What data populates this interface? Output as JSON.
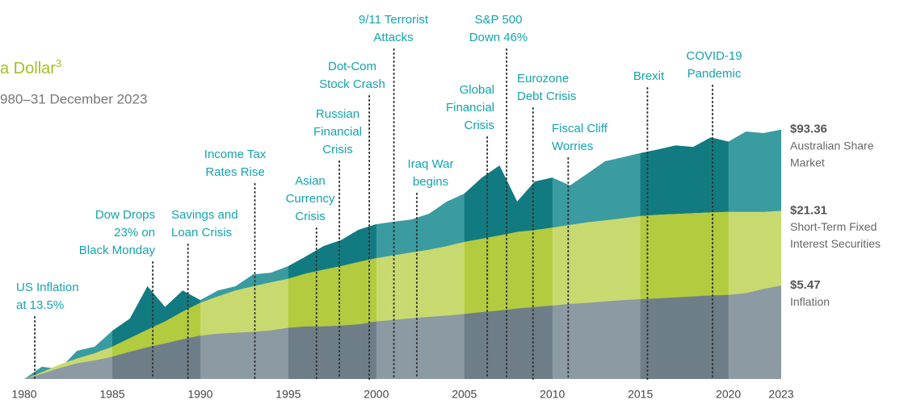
{
  "chart_data": {
    "type": "area",
    "title": "a Dollar",
    "title_superscript": "3",
    "subtitle": "980–31 December 2023",
    "log_scale": true,
    "xlim": [
      1980,
      2023
    ],
    "ylim": [
      1,
      100
    ],
    "xticks": [
      1980,
      1985,
      1990,
      1995,
      2000,
      2005,
      2010,
      2015,
      2020,
      2023
    ],
    "x": [
      1980,
      1981,
      1982,
      1983,
      1984,
      1985,
      1986,
      1987,
      1988,
      1989,
      1990,
      1991,
      1992,
      1993,
      1994,
      1995,
      1996,
      1997,
      1998,
      1999,
      2000,
      2001,
      2002,
      2003,
      2004,
      2005,
      2006,
      2007,
      2008,
      2009,
      2010,
      2011,
      2012,
      2013,
      2014,
      2015,
      2016,
      2017,
      2018,
      2019,
      2020,
      2021,
      2022,
      2023
    ],
    "series": [
      {
        "name_lines": [
          "Australian Share",
          "Market"
        ],
        "color": "#3a9ba1",
        "band_color": "#127b81",
        "value_label": "$93.36",
        "values": [
          1,
          1.25,
          1.2,
          1.67,
          1.8,
          2.4,
          3.0,
          5.4,
          3.7,
          5.0,
          4.2,
          5.0,
          5.4,
          6.7,
          6.9,
          7.8,
          9.3,
          11.2,
          12.5,
          15.1,
          16.7,
          17.5,
          18.2,
          20.2,
          25.2,
          29.1,
          39,
          48.6,
          25.2,
          36.3,
          39,
          33.8,
          42,
          52.5,
          56.4,
          60.8,
          65,
          70,
          68,
          81,
          75,
          90,
          87.6,
          93.36
        ]
      },
      {
        "name_lines": [
          "Short-Term Fixed",
          "Interest Securities"
        ],
        "color": "#c8da6f",
        "band_color": "#b3cb3e",
        "value_label": "$21.31",
        "values": [
          1,
          1.13,
          1.3,
          1.45,
          1.6,
          1.8,
          2.1,
          2.45,
          2.85,
          3.4,
          4.0,
          4.5,
          5.0,
          5.4,
          5.8,
          6.2,
          6.8,
          7.3,
          7.8,
          8.4,
          9.0,
          9.5,
          10.0,
          10.5,
          11.2,
          12.1,
          12.8,
          13.6,
          14.5,
          15.0,
          15.7,
          16.5,
          17.3,
          17.9,
          18.6,
          19.4,
          19.8,
          20.1,
          20.4,
          20.7,
          20.9,
          20.9,
          20.9,
          21.31
        ]
      },
      {
        "name_lines": [
          "Inflation"
        ],
        "color": "#8c9aa3",
        "band_color": "#6e7e88",
        "value_label": "$5.47",
        "values": [
          1,
          1.1,
          1.22,
          1.33,
          1.4,
          1.5,
          1.64,
          1.78,
          1.91,
          2.06,
          2.2,
          2.28,
          2.32,
          2.36,
          2.42,
          2.54,
          2.6,
          2.6,
          2.64,
          2.7,
          2.85,
          2.93,
          3.02,
          3.1,
          3.17,
          3.26,
          3.37,
          3.47,
          3.6,
          3.7,
          3.8,
          3.92,
          4.0,
          4.1,
          4.2,
          4.27,
          4.33,
          4.41,
          4.49,
          4.57,
          4.61,
          4.77,
          5.15,
          5.47
        ]
      }
    ],
    "annotations": [
      {
        "lines": [
          "US Inflation",
          "at 13.5%"
        ],
        "x": 1980.6
      },
      {
        "lines": [
          "Dow Drops",
          "23% on",
          "Black Monday"
        ],
        "x": 1987.3
      },
      {
        "lines": [
          "Savings and",
          "Loan Crisis"
        ],
        "x": 1989.3
      },
      {
        "lines": [
          "Income Tax",
          "Rates Rise"
        ],
        "x": 1993.1
      },
      {
        "lines": [
          "Asian",
          "Currency",
          "Crisis"
        ],
        "x": 1996.6
      },
      {
        "lines": [
          "Russian",
          "Financial",
          "Crisis"
        ],
        "x": 1997.9
      },
      {
        "lines": [
          "Dot-Com",
          "Stock Crash"
        ],
        "x": 1999.6
      },
      {
        "lines": [
          "9/11 Terrorist",
          "Attacks"
        ],
        "x": 2001.0
      },
      {
        "lines": [
          "Iraq War",
          "begins"
        ],
        "x": 2002.3
      },
      {
        "lines": [
          "Global",
          "Financial",
          "Crisis"
        ],
        "x": 2006.3
      },
      {
        "lines": [
          "S&P 500",
          "Down 46%"
        ],
        "x": 2007.4
      },
      {
        "lines": [
          "Eurozone",
          "Debt Crisis"
        ],
        "x": 2008.9
      },
      {
        "lines": [
          "Fiscal Cliff",
          "Worries"
        ],
        "x": 2010.9
      },
      {
        "lines": [
          "Brexit"
        ],
        "x": 2015.4
      },
      {
        "lines": [
          "COVID-19",
          "Pandemic"
        ],
        "x": 2019.1
      }
    ]
  }
}
